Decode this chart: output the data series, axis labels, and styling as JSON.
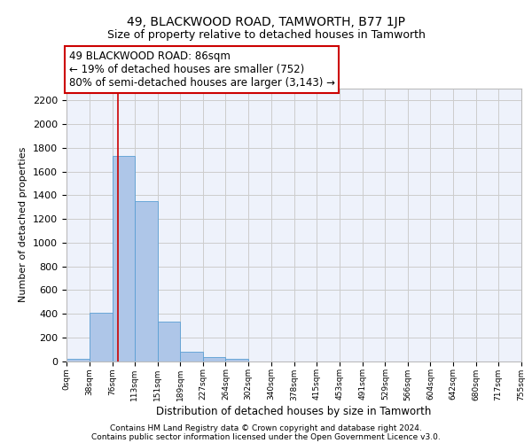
{
  "title": "49, BLACKWOOD ROAD, TAMWORTH, B77 1JP",
  "subtitle": "Size of property relative to detached houses in Tamworth",
  "xlabel": "Distribution of detached houses by size in Tamworth",
  "ylabel": "Number of detached properties",
  "bin_edges": [
    0,
    38,
    76,
    113,
    151,
    189,
    227,
    264,
    302,
    340,
    378,
    415,
    453,
    491,
    529,
    566,
    604,
    642,
    680,
    717,
    755
  ],
  "bar_heights": [
    15,
    410,
    1730,
    1350,
    330,
    80,
    30,
    18,
    0,
    0,
    0,
    0,
    0,
    0,
    0,
    0,
    0,
    0,
    0,
    0
  ],
  "bar_color": "#aec6e8",
  "bar_edge_color": "#5a9fd4",
  "grid_color": "#cccccc",
  "background_color": "#eef2fb",
  "vline_x": 86,
  "vline_color": "#cc0000",
  "annotation_text": "49 BLACKWOOD ROAD: 86sqm\n← 19% of detached houses are smaller (752)\n80% of semi-detached houses are larger (3,143) →",
  "annotation_box_color": "white",
  "annotation_box_edge_color": "#cc0000",
  "ylim": [
    0,
    2300
  ],
  "yticks": [
    0,
    200,
    400,
    600,
    800,
    1000,
    1200,
    1400,
    1600,
    1800,
    2000,
    2200
  ],
  "footer_line1": "Contains HM Land Registry data © Crown copyright and database right 2024.",
  "footer_line2": "Contains public sector information licensed under the Open Government Licence v3.0.",
  "title_fontsize": 10,
  "subtitle_fontsize": 9,
  "tick_labels": [
    "0sqm",
    "38sqm",
    "76sqm",
    "113sqm",
    "151sqm",
    "189sqm",
    "227sqm",
    "264sqm",
    "302sqm",
    "340sqm",
    "378sqm",
    "415sqm",
    "453sqm",
    "491sqm",
    "529sqm",
    "566sqm",
    "604sqm",
    "642sqm",
    "680sqm",
    "717sqm",
    "755sqm"
  ]
}
